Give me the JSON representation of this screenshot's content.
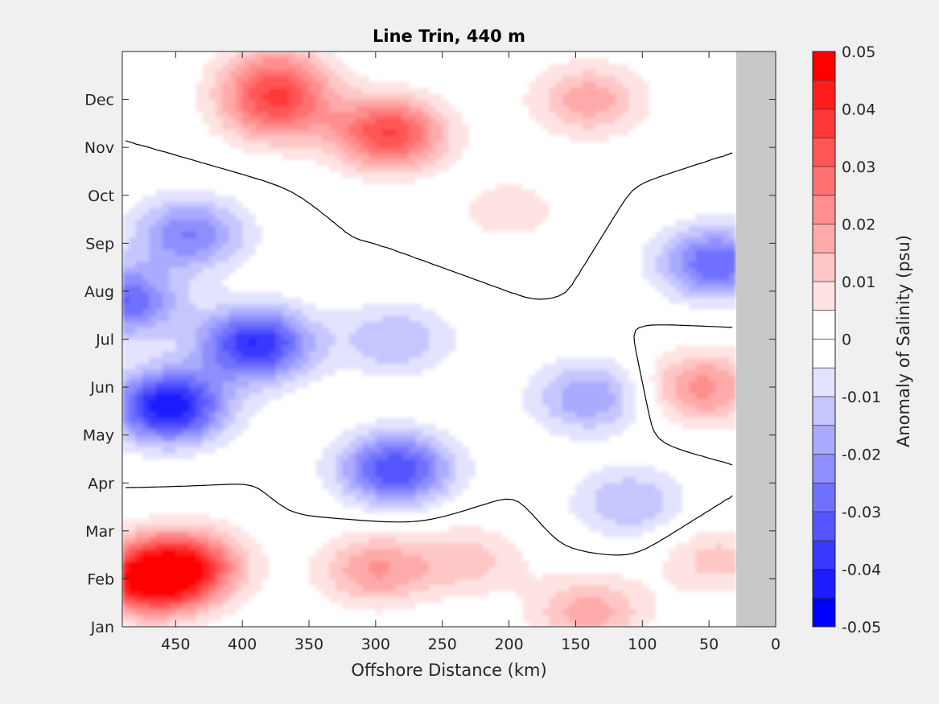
{
  "chart_data": {
    "type": "heatmap",
    "subtype": "filled-contour",
    "title": "Line Trin, 440 m",
    "xlabel": "Offshore Distance (km)",
    "ylabel": "",
    "xlim": [
      490,
      0
    ],
    "x_direction": "reversed",
    "xticks": [
      450,
      400,
      350,
      300,
      250,
      200,
      150,
      100,
      50,
      0
    ],
    "xtick_labels": [
      "450",
      "400",
      "350",
      "300",
      "250",
      "200",
      "150",
      "100",
      "50",
      "0"
    ],
    "ylim": [
      0,
      12
    ],
    "yticks": [
      0,
      1,
      2,
      3,
      4,
      5,
      6,
      7,
      8,
      9,
      10,
      11
    ],
    "ytick_labels": [
      "Jan",
      "Feb",
      "Mar",
      "Apr",
      "May",
      "Jun",
      "Jul",
      "Aug",
      "Sep",
      "Oct",
      "Nov",
      "Dec"
    ],
    "no_data_region": {
      "x_from": 30,
      "x_to": 0,
      "color": "#c8c8c8"
    },
    "zero_contour_line": "#000000",
    "colorbar": {
      "label": "Anomaly of Salinity (psu)",
      "min": -0.05,
      "max": 0.05,
      "ticks": [
        0.05,
        0.04,
        0.03,
        0.02,
        0.01,
        0,
        -0.01,
        -0.02,
        -0.03,
        -0.04,
        -0.05
      ],
      "tick_labels": [
        "0.05",
        "0.04",
        "0.03",
        "0.02",
        "0.01",
        "0",
        "-0.01",
        "-0.02",
        "-0.03",
        "-0.04",
        "-0.05"
      ],
      "levels": [
        "#ff0000",
        "#ff1c1c",
        "#ff3939",
        "#ff5555",
        "#ff7171",
        "#ff8e8e",
        "#ffaaaa",
        "#ffc6c6",
        "#ffe3e3",
        "#ffffff",
        "#ffffff",
        "#e3e3ff",
        "#c6c6ff",
        "#aaaaff",
        "#8e8eff",
        "#7171ff",
        "#5555ff",
        "#3939ff",
        "#1c1cff",
        "#0000ff"
      ]
    },
    "anomaly_features": [
      {
        "x": 470,
        "y": 1.0,
        "value": 0.045
      },
      {
        "x": 440,
        "y": 1.3,
        "value": 0.03
      },
      {
        "x": 455,
        "y": 4.6,
        "value": -0.045
      },
      {
        "x": 390,
        "y": 5.9,
        "value": -0.04
      },
      {
        "x": 440,
        "y": 8.2,
        "value": -0.025
      },
      {
        "x": 285,
        "y": 3.3,
        "value": -0.035
      },
      {
        "x": 490,
        "y": 6.8,
        "value": -0.03
      },
      {
        "x": 290,
        "y": 10.3,
        "value": 0.035
      },
      {
        "x": 375,
        "y": 10.8,
        "value": 0.025
      },
      {
        "x": 375,
        "y": 11.5,
        "value": 0.02
      },
      {
        "x": 140,
        "y": 11.0,
        "value": 0.018
      },
      {
        "x": 45,
        "y": 7.6,
        "value": -0.03
      },
      {
        "x": 55,
        "y": 5.0,
        "value": 0.022
      },
      {
        "x": 140,
        "y": 4.8,
        "value": -0.02
      },
      {
        "x": 285,
        "y": 6.0,
        "value": -0.015
      },
      {
        "x": 300,
        "y": 1.2,
        "value": 0.02
      },
      {
        "x": 140,
        "y": 0.3,
        "value": 0.018
      },
      {
        "x": 45,
        "y": 1.4,
        "value": 0.012
      },
      {
        "x": 110,
        "y": 2.6,
        "value": -0.015
      },
      {
        "x": 200,
        "y": 8.7,
        "value": 0.008
      },
      {
        "x": 230,
        "y": 1.4,
        "value": 0.012
      }
    ]
  }
}
